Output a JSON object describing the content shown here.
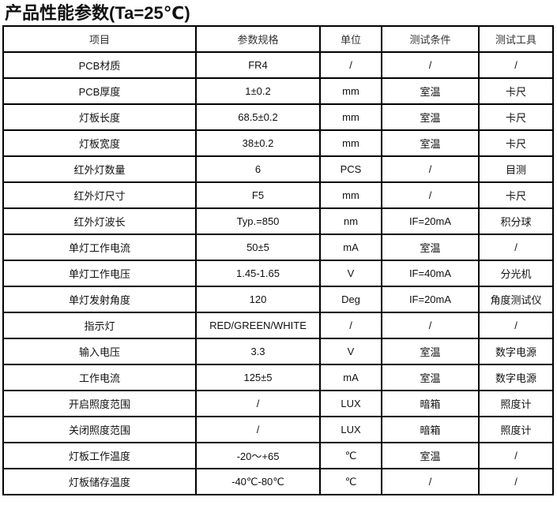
{
  "title": "产品性能参数(Ta=25℃)",
  "table": {
    "headers": [
      "项目",
      "参数规格",
      "单位",
      "测试条件",
      "测试工具"
    ],
    "rows": [
      [
        "PCB材质",
        "FR4",
        "/",
        "/",
        "/"
      ],
      [
        "PCB厚度",
        "1±0.2",
        "mm",
        "室温",
        "卡尺"
      ],
      [
        "灯板长度",
        "68.5±0.2",
        "mm",
        "室温",
        "卡尺"
      ],
      [
        "灯板宽度",
        "38±0.2",
        "mm",
        "室温",
        "卡尺"
      ],
      [
        "红外灯数量",
        "6",
        "PCS",
        "/",
        "目测"
      ],
      [
        "红外灯尺寸",
        "F5",
        "mm",
        "/",
        "卡尺"
      ],
      [
        "红外灯波长",
        "Typ.=850",
        "nm",
        "IF=20mA",
        "积分球"
      ],
      [
        "单灯工作电流",
        "50±5",
        "mA",
        "室温",
        "/"
      ],
      [
        "单灯工作电压",
        "1.45-1.65",
        "V",
        "IF=40mA",
        "分光机"
      ],
      [
        "单灯发射角度",
        "120",
        "Deg",
        "IF=20mA",
        "角度测试仪"
      ],
      [
        "指示灯",
        "RED/GREEN/WHITE",
        "/",
        "/",
        "/"
      ],
      [
        "输入电压",
        "3.3",
        "V",
        "室温",
        "数字电源"
      ],
      [
        "工作电流",
        "125±5",
        "mA",
        "室温",
        "数字电源"
      ],
      [
        "开启照度范围",
        "/",
        "LUX",
        "暗箱",
        "照度计"
      ],
      [
        "关闭照度范围",
        "/",
        "LUX",
        "暗箱",
        "照度计"
      ],
      [
        "灯板工作温度",
        "-20～+65",
        "℃",
        "室温",
        "/"
      ],
      [
        "灯板储存温度",
        "-40℃-80℃",
        "℃",
        "/",
        "/"
      ]
    ]
  }
}
